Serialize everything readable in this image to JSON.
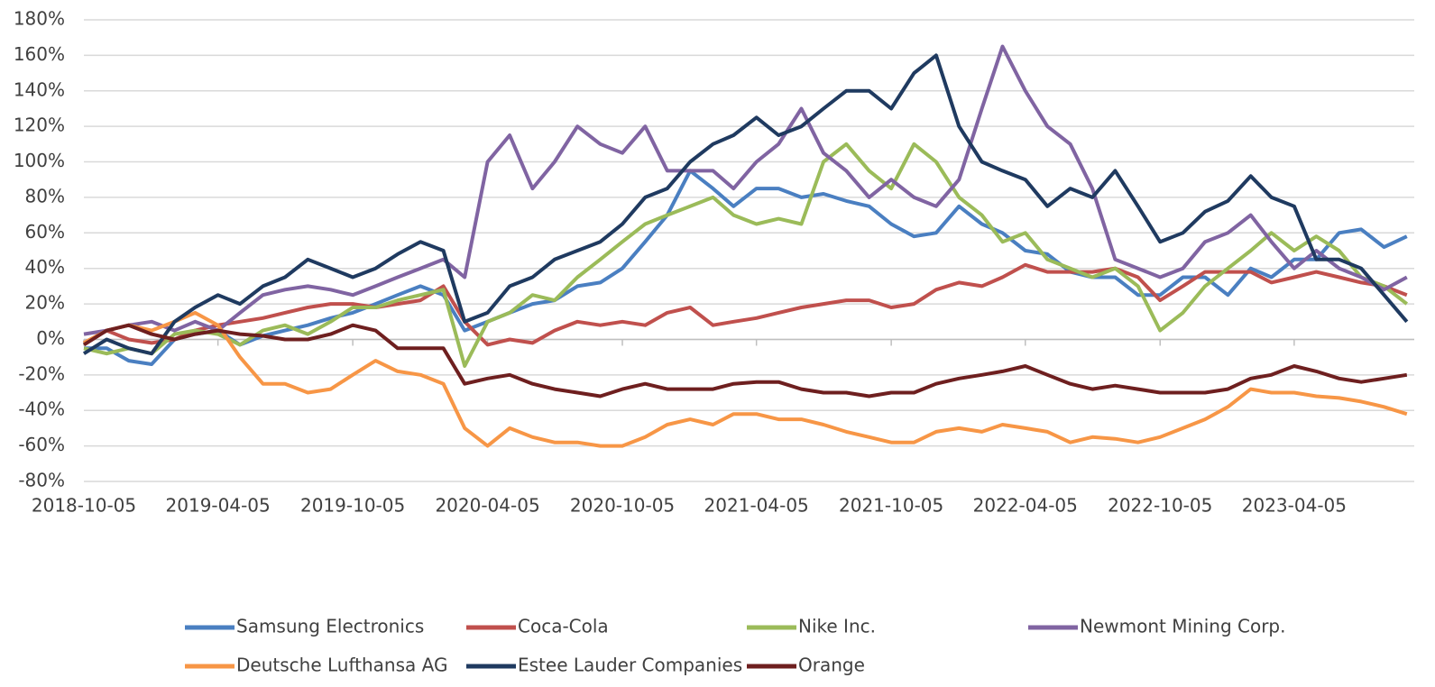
{
  "chart_data": {
    "type": "line",
    "x": [
      "2018-10-05",
      "2018-11-05",
      "2018-12-05",
      "2019-01-05",
      "2019-02-05",
      "2019-03-05",
      "2019-04-05",
      "2019-05-05",
      "2019-06-05",
      "2019-07-05",
      "2019-08-05",
      "2019-09-05",
      "2019-10-05",
      "2019-11-05",
      "2019-12-05",
      "2020-01-05",
      "2020-02-05",
      "2020-03-05",
      "2020-04-05",
      "2020-05-05",
      "2020-06-05",
      "2020-07-05",
      "2020-08-05",
      "2020-09-05",
      "2020-10-05",
      "2020-11-05",
      "2020-12-05",
      "2021-01-05",
      "2021-02-05",
      "2021-03-05",
      "2021-04-05",
      "2021-05-05",
      "2021-06-05",
      "2021-07-05",
      "2021-08-05",
      "2021-09-05",
      "2021-10-05",
      "2021-11-05",
      "2021-12-05",
      "2022-01-05",
      "2022-02-05",
      "2022-03-05",
      "2022-04-05",
      "2022-05-05",
      "2022-06-05",
      "2022-07-05",
      "2022-08-05",
      "2022-09-05",
      "2022-10-05",
      "2022-11-05",
      "2022-12-05",
      "2023-01-05",
      "2023-02-05",
      "2023-03-05",
      "2023-04-05",
      "2023-05-05",
      "2023-06-05",
      "2023-07-05",
      "2023-08-05",
      "2023-09-05"
    ],
    "xlim": [
      "2018-10-05",
      "2023-09-15"
    ],
    "xticks": [
      "2018-10-05",
      "2019-04-05",
      "2019-10-05",
      "2020-04-05",
      "2020-10-05",
      "2021-04-05",
      "2021-10-05",
      "2022-04-05",
      "2022-10-05",
      "2023-04-05"
    ],
    "ylim": [
      -80,
      180
    ],
    "yticks": [
      {
        "value": -80,
        "label": "-80%"
      },
      {
        "value": -60,
        "label": "-60%"
      },
      {
        "value": -40,
        "label": "-40%"
      },
      {
        "value": -20,
        "label": "-20%"
      },
      {
        "value": 0,
        "label": "0%"
      },
      {
        "value": 20,
        "label": "20%"
      },
      {
        "value": 40,
        "label": "40%"
      },
      {
        "value": 60,
        "label": "60%"
      },
      {
        "value": 80,
        "label": "80%"
      },
      {
        "value": 100,
        "label": "100%"
      },
      {
        "value": 120,
        "label": "120%"
      },
      {
        "value": 140,
        "label": "140%"
      },
      {
        "value": 160,
        "label": "160%"
      },
      {
        "value": 180,
        "label": "180%"
      }
    ],
    "grid": true,
    "legend": "bottom",
    "series": [
      {
        "name": "Samsung Electronics",
        "color": "#4a7fc1",
        "values": [
          -5,
          -5,
          -12,
          -14,
          0,
          3,
          5,
          -3,
          2,
          5,
          8,
          12,
          15,
          20,
          25,
          30,
          25,
          5,
          10,
          15,
          20,
          22,
          30,
          32,
          40,
          55,
          70,
          95,
          85,
          75,
          85,
          85,
          80,
          82,
          78,
          75,
          65,
          58,
          60,
          75,
          65,
          60,
          50,
          48,
          38,
          35,
          35,
          25,
          25,
          35,
          35,
          25,
          40,
          35,
          45,
          45,
          60,
          62,
          52,
          58
        ]
      },
      {
        "name": "Coca-Cola",
        "color": "#c0504d",
        "values": [
          -2,
          5,
          0,
          -2,
          0,
          5,
          8,
          10,
          12,
          15,
          18,
          20,
          20,
          18,
          20,
          22,
          30,
          10,
          -3,
          0,
          -2,
          5,
          10,
          8,
          10,
          8,
          15,
          18,
          8,
          10,
          12,
          15,
          18,
          20,
          22,
          22,
          18,
          20,
          28,
          32,
          30,
          35,
          42,
          38,
          38,
          38,
          40,
          35,
          22,
          30,
          38,
          38,
          38,
          32,
          35,
          38,
          35,
          32,
          30,
          25
        ]
      },
      {
        "name": "Nike Inc.",
        "color": "#9bbb59",
        "values": [
          -5,
          -8,
          -5,
          -8,
          3,
          5,
          3,
          -3,
          5,
          8,
          3,
          10,
          18,
          18,
          22,
          25,
          28,
          -15,
          10,
          15,
          25,
          22,
          35,
          45,
          55,
          65,
          70,
          75,
          80,
          70,
          65,
          68,
          65,
          100,
          110,
          95,
          85,
          110,
          100,
          80,
          70,
          55,
          60,
          45,
          40,
          35,
          40,
          30,
          5,
          15,
          30,
          40,
          50,
          60,
          50,
          58,
          50,
          35,
          30,
          20
        ]
      },
      {
        "name": "Newmont Mining Corp.",
        "color": "#8064a2",
        "values": [
          3,
          5,
          8,
          10,
          5,
          10,
          5,
          15,
          25,
          28,
          30,
          28,
          25,
          30,
          35,
          40,
          45,
          35,
          100,
          115,
          85,
          100,
          120,
          110,
          105,
          120,
          95,
          95,
          95,
          85,
          100,
          110,
          130,
          105,
          95,
          80,
          90,
          80,
          75,
          90,
          130,
          165,
          140,
          120,
          110,
          85,
          45,
          40,
          35,
          40,
          55,
          60,
          70,
          55,
          40,
          50,
          40,
          35,
          28,
          35
        ]
      },
      {
        "name": "Deutsche Lufthansa AG",
        "color": "#f79646",
        "values": [
          -2,
          5,
          8,
          5,
          10,
          15,
          8,
          -10,
          -25,
          -25,
          -30,
          -28,
          -20,
          -12,
          -18,
          -20,
          -25,
          -50,
          -60,
          -50,
          -55,
          -58,
          -58,
          -60,
          -60,
          -55,
          -48,
          -45,
          -48,
          -42,
          -42,
          -45,
          -45,
          -48,
          -52,
          -55,
          -58,
          -58,
          -52,
          -50,
          -52,
          -48,
          -50,
          -52,
          -58,
          -55,
          -56,
          -58,
          -55,
          -50,
          -45,
          -38,
          -28,
          -30,
          -30,
          -32,
          -33,
          -35,
          -38,
          -42
        ]
      },
      {
        "name": "Estee Lauder Companies",
        "color": "#1f3a60",
        "values": [
          -8,
          0,
          -5,
          -8,
          10,
          18,
          25,
          20,
          30,
          35,
          45,
          40,
          35,
          40,
          48,
          55,
          50,
          10,
          15,
          30,
          35,
          45,
          50,
          55,
          65,
          80,
          85,
          100,
          110,
          115,
          125,
          115,
          120,
          130,
          140,
          140,
          130,
          150,
          160,
          120,
          100,
          95,
          90,
          75,
          85,
          80,
          95,
          75,
          55,
          60,
          72,
          78,
          92,
          80,
          75,
          45,
          45,
          40,
          25,
          10
        ]
      },
      {
        "name": "Orange",
        "color": "#6e1f1f",
        "values": [
          -3,
          5,
          8,
          3,
          0,
          3,
          5,
          3,
          2,
          0,
          0,
          3,
          8,
          5,
          -5,
          -5,
          -5,
          -25,
          -22,
          -20,
          -25,
          -28,
          -30,
          -32,
          -28,
          -25,
          -28,
          -28,
          -28,
          -25,
          -24,
          -24,
          -28,
          -30,
          -30,
          -32,
          -30,
          -30,
          -25,
          -22,
          -20,
          -18,
          -15,
          -20,
          -25,
          -28,
          -26,
          -28,
          -30,
          -30,
          -30,
          -28,
          -22,
          -20,
          -15,
          -18,
          -22,
          -24,
          -22,
          -20
        ]
      }
    ]
  }
}
